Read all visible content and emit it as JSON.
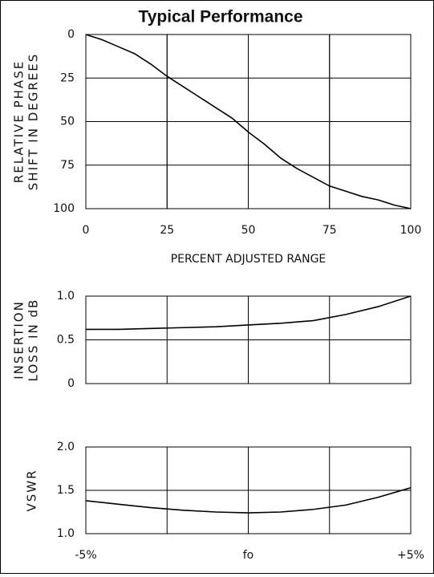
{
  "title": "Typical Performance",
  "chart_data": [
    {
      "type": "line",
      "ylabel": [
        "RELATIVE PHASE",
        "SHIFT IN DEGREES"
      ],
      "xlabel": "PERCENT ADJUSTED RANGE",
      "x": [
        0,
        5,
        10,
        15,
        20,
        25,
        30,
        35,
        40,
        45,
        50,
        55,
        60,
        65,
        70,
        75,
        80,
        85,
        90,
        95,
        100
      ],
      "values": [
        0,
        3,
        7,
        11,
        17,
        24,
        30,
        36,
        42,
        48,
        56,
        63,
        71,
        77,
        82,
        87,
        90,
        93,
        95,
        98,
        100
      ],
      "color": "#000000",
      "xlim": [
        0,
        100
      ],
      "xticks": [
        0,
        25,
        50,
        75,
        100
      ],
      "ylim": [
        100,
        0
      ],
      "yticks": [
        0,
        25,
        50,
        75,
        100
      ],
      "grid": true
    },
    {
      "type": "line",
      "ylabel": [
        "INSERTION",
        "LOSS IN dB"
      ],
      "x": [
        -5,
        -4,
        -3,
        -2,
        -1,
        0,
        1,
        2,
        3,
        4,
        5
      ],
      "values": [
        0.62,
        0.62,
        0.63,
        0.64,
        0.65,
        0.67,
        0.69,
        0.72,
        0.79,
        0.88,
        1.0
      ],
      "color": "#000000",
      "xlim": [
        -5,
        5
      ],
      "ylim": [
        0,
        1
      ],
      "yticks": [
        {
          "value": 1,
          "label": "1.0"
        },
        0.5,
        0
      ],
      "grid": true
    },
    {
      "type": "line",
      "ylabel": [
        "VSWR"
      ],
      "x": [
        -5,
        -4,
        -3,
        -2,
        -1,
        0,
        1,
        2,
        3,
        4,
        5
      ],
      "values": [
        1.38,
        1.34,
        1.3,
        1.27,
        1.25,
        1.24,
        1.25,
        1.28,
        1.33,
        1.42,
        1.53
      ],
      "color": "#000000",
      "xlim": [
        -5,
        5
      ],
      "xticks": [
        {
          "value": -5,
          "label": "-5%"
        },
        {
          "value": 0,
          "label": "fo"
        },
        {
          "value": 5,
          "label": "+5%"
        }
      ],
      "ylim": [
        1,
        2
      ],
      "yticks": [
        {
          "value": 2,
          "label": "2.0"
        },
        1.5,
        {
          "value": 1,
          "label": "1.0"
        }
      ],
      "grid": true
    }
  ]
}
